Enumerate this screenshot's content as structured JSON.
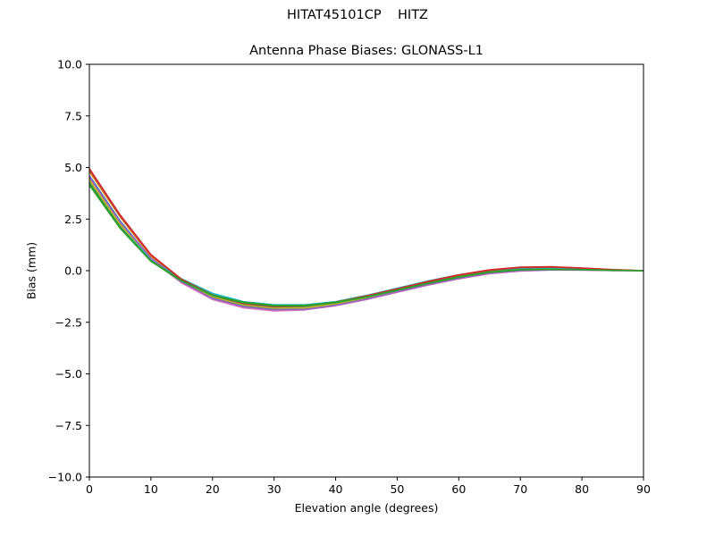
{
  "figure": {
    "suptitle": "HITAT45101CP    HITZ"
  },
  "chart_data": {
    "type": "line",
    "title": "Antenna Phase Biases: GLONASS-L1",
    "xlabel": "Elevation angle (degrees)",
    "ylabel": "Bias (mm)",
    "xlim": [
      0,
      90
    ],
    "ylim": [
      -10,
      10
    ],
    "xticks": [
      0,
      10,
      20,
      30,
      40,
      50,
      60,
      70,
      80,
      90
    ],
    "yticks": [
      -10.0,
      -7.5,
      -5.0,
      -2.5,
      0.0,
      2.5,
      5.0,
      7.5,
      10.0
    ],
    "xtick_labels": [
      "0",
      "10",
      "20",
      "30",
      "40",
      "50",
      "60",
      "70",
      "80",
      "90"
    ],
    "ytick_labels": [
      "−10.0",
      "−7.5",
      "−5.0",
      "−2.5",
      "0.0",
      "2.5",
      "5.0",
      "7.5",
      "10.0"
    ],
    "grid": false,
    "legend": false,
    "x": [
      0,
      5,
      10,
      15,
      20,
      25,
      30,
      35,
      40,
      45,
      50,
      55,
      60,
      65,
      70,
      75,
      80,
      85,
      90
    ],
    "series": [
      {
        "color": "#1f77b4",
        "values": [
          4.6,
          2.4,
          0.6,
          -0.5,
          -1.2,
          -1.6,
          -1.75,
          -1.75,
          -1.6,
          -1.3,
          -0.95,
          -0.6,
          -0.3,
          -0.05,
          0.05,
          0.08,
          0.05,
          0.02,
          0.0
        ]
      },
      {
        "color": "#ff7f0e",
        "values": [
          4.8,
          2.6,
          0.7,
          -0.45,
          -1.15,
          -1.55,
          -1.7,
          -1.7,
          -1.55,
          -1.25,
          -0.9,
          -0.55,
          -0.25,
          -0.02,
          0.1,
          0.12,
          0.08,
          0.03,
          0.0
        ]
      },
      {
        "color": "#e377c2",
        "values": [
          4.5,
          2.3,
          0.55,
          -0.6,
          -1.4,
          -1.8,
          -1.95,
          -1.9,
          -1.7,
          -1.4,
          -1.05,
          -0.7,
          -0.4,
          -0.15,
          -0.02,
          0.03,
          0.03,
          0.01,
          0.0
        ]
      },
      {
        "color": "#7f7f7f",
        "values": [
          4.3,
          2.2,
          0.5,
          -0.55,
          -1.3,
          -1.7,
          -1.85,
          -1.85,
          -1.65,
          -1.35,
          -1.0,
          -0.65,
          -0.35,
          -0.1,
          0.02,
          0.05,
          0.04,
          0.01,
          0.0
        ]
      },
      {
        "color": "#bcbd22",
        "values": [
          4.4,
          2.25,
          0.55,
          -0.5,
          -1.25,
          -1.65,
          -1.8,
          -1.8,
          -1.6,
          -1.3,
          -0.95,
          -0.6,
          -0.3,
          -0.08,
          0.04,
          0.07,
          0.05,
          0.02,
          0.0
        ]
      },
      {
        "color": "#17becf",
        "values": [
          4.2,
          2.1,
          0.55,
          -0.4,
          -1.1,
          -1.5,
          -1.65,
          -1.65,
          -1.5,
          -1.2,
          -0.85,
          -0.5,
          -0.2,
          0.02,
          0.12,
          0.14,
          0.1,
          0.04,
          0.0
        ]
      },
      {
        "color": "#9467bd",
        "values": [
          4.55,
          2.35,
          0.6,
          -0.55,
          -1.35,
          -1.75,
          -1.9,
          -1.88,
          -1.68,
          -1.38,
          -1.02,
          -0.68,
          -0.37,
          -0.12,
          0.0,
          0.04,
          0.03,
          0.01,
          0.0
        ]
      },
      {
        "color": "#8c564b",
        "values": [
          4.9,
          2.65,
          0.75,
          -0.45,
          -1.2,
          -1.6,
          -1.75,
          -1.72,
          -1.55,
          -1.25,
          -0.9,
          -0.55,
          -0.22,
          0.02,
          0.15,
          0.17,
          0.12,
          0.05,
          0.0
        ]
      },
      {
        "color": "#d62728",
        "values": [
          4.95,
          2.7,
          0.78,
          -0.42,
          -1.17,
          -1.57,
          -1.72,
          -1.7,
          -1.52,
          -1.22,
          -0.88,
          -0.52,
          -0.2,
          0.04,
          0.17,
          0.19,
          0.13,
          0.05,
          0.0
        ]
      },
      {
        "color": "#2ca02c",
        "values": [
          4.15,
          2.05,
          0.45,
          -0.5,
          -1.2,
          -1.55,
          -1.7,
          -1.7,
          -1.55,
          -1.28,
          -0.95,
          -0.62,
          -0.32,
          -0.08,
          0.04,
          0.06,
          0.05,
          0.02,
          0.0
        ]
      },
      {
        "color": "#2ca02c",
        "values": [
          4.25,
          2.1,
          0.48,
          -0.48,
          -1.18,
          -1.52,
          -1.68,
          -1.68,
          -1.53,
          -1.26,
          -0.93,
          -0.6,
          -0.3,
          -0.06,
          0.05,
          0.07,
          0.05,
          0.02,
          0.0
        ]
      }
    ]
  }
}
